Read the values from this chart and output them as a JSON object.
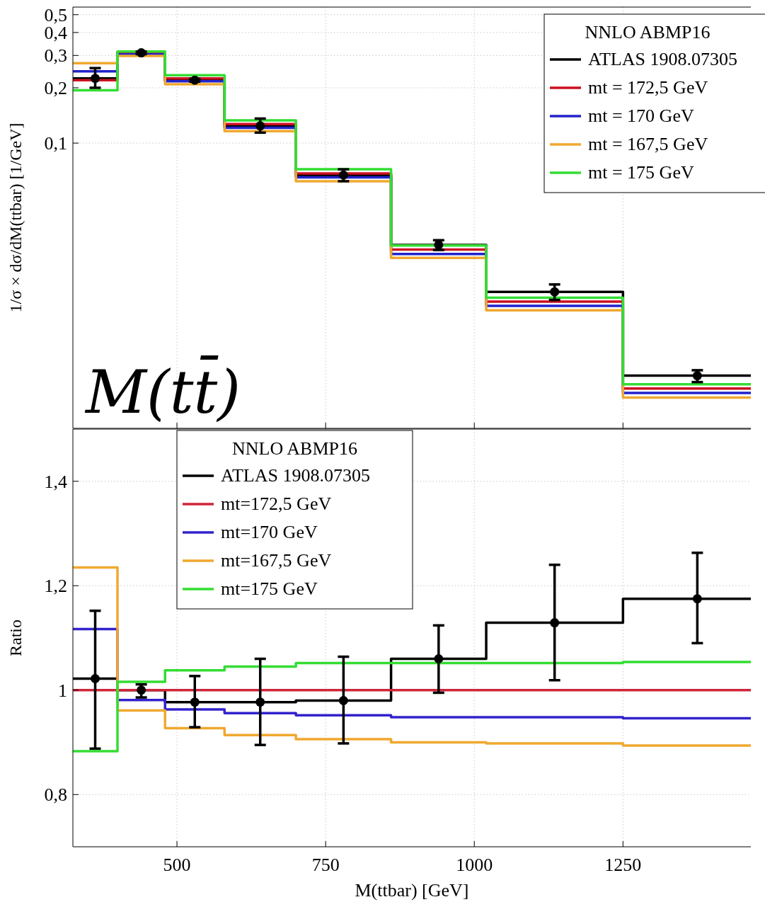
{
  "chart_data": [
    {
      "type": "step",
      "log": true,
      "ylabel": "1/σ × dσ/dM(ttbar) [1/GeV]",
      "legend_title": "NNLO ABMP16",
      "legend": "top right",
      "grid": true,
      "tick_labels": "y",
      "xlim": [
        325,
        1465
      ],
      "xticks": [
        500,
        750,
        1000,
        1250
      ],
      "ylim": [
        0.0028,
        0.55
      ],
      "yticks": [
        {
          "value": 0.1,
          "label": "0,1"
        },
        {
          "value": 0.2,
          "label": "0,2"
        },
        {
          "value": 0.3,
          "label": "0,3"
        },
        {
          "value": 0.4,
          "label": "0,4"
        },
        {
          "value": 0.5,
          "label": "0,5"
        }
      ],
      "annotations": [
        "M(tt̄)"
      ],
      "x": [
        325,
        400,
        480,
        580,
        700,
        860,
        1020,
        1250,
        1465
      ],
      "series": [
        {
          "name": "ATLAS 1908.07305",
          "color": "#000000",
          "values": [
            0.225,
            0.31,
            0.22,
            0.124,
            0.067,
            0.0279,
            0.0155,
            0.00542,
            0.00542
          ]
        },
        {
          "name": "mt = 172,5 GeV",
          "color": "#cc1122",
          "values": [
            0.22,
            0.31,
            0.225,
            0.127,
            0.0684,
            0.0263,
            0.0137,
            0.00461,
            0.00461
          ]
        },
        {
          "name": "mt = 170 GeV",
          "color": "#2222cc",
          "values": [
            0.246,
            0.304,
            0.217,
            0.121,
            0.0651,
            0.0249,
            0.013,
            0.00436,
            0.00436
          ]
        },
        {
          "name": "mt = 167,5 GeV",
          "color": "#f0a830",
          "values": [
            0.272,
            0.298,
            0.209,
            0.116,
            0.062,
            0.0237,
            0.0123,
            0.00412,
            0.00412
          ]
        },
        {
          "name": "mt = 175 GeV",
          "color": "#33dd33",
          "values": [
            0.194,
            0.315,
            0.234,
            0.133,
            0.072,
            0.0277,
            0.0144,
            0.00486,
            0.00486
          ]
        },
        {
          "type": "scatter",
          "marker": "circle",
          "color": "#000000",
          "x": [
            362.5,
            440,
            530,
            640,
            780,
            940,
            1135,
            1375
          ],
          "values": [
            0.225,
            0.31,
            0.22,
            0.124,
            0.067,
            0.0279,
            0.0155,
            0.00542
          ],
          "errors": [
            [
              0.2,
              0.256
            ],
            [
              0.305,
              0.315
            ],
            [
              0.216,
              0.224
            ],
            [
              0.114,
              0.136
            ],
            [
              0.062,
              0.072
            ],
            [
              0.0262,
              0.0296
            ],
            [
              0.014,
              0.017
            ],
            [
              0.005,
              0.0058
            ]
          ]
        }
      ]
    },
    {
      "type": "step",
      "ylabel": "Ratio",
      "xlabel": "M(ttbar) [GeV]",
      "legend_title": "NNLO ABMP16",
      "legend": "top left",
      "grid": true,
      "xlim": [
        325,
        1465
      ],
      "xticks": [
        500,
        750,
        1000,
        1250
      ],
      "ylim": [
        0.7,
        1.5
      ],
      "yticks": [
        {
          "value": 0.8,
          "label": "0,8"
        },
        1,
        {
          "value": 1.2,
          "label": "1,2"
        },
        {
          "value": 1.4,
          "label": "1,4"
        }
      ],
      "x": [
        325,
        400,
        480,
        580,
        700,
        860,
        1020,
        1250,
        1465
      ],
      "series": [
        {
          "name": "ATLAS 1908.07305",
          "color": "#000000",
          "values": [
            1.022,
            1.0,
            0.977,
            0.977,
            0.98,
            1.06,
            1.129,
            1.175,
            1.175
          ]
        },
        {
          "name": "mt=172,5 GeV",
          "color": "#d0263a",
          "values": [
            1,
            1,
            1,
            1,
            1,
            1,
            1,
            1,
            1
          ]
        },
        {
          "name": "mt=170 GeV",
          "color": "#3322cc",
          "values": [
            1.117,
            0.981,
            0.963,
            0.956,
            0.952,
            0.948,
            0.948,
            0.946,
            0.946
          ]
        },
        {
          "name": "mt=167,5 GeV",
          "color": "#f0a830",
          "values": [
            1.235,
            0.961,
            0.927,
            0.914,
            0.906,
            0.9,
            0.898,
            0.894,
            0.894
          ]
        },
        {
          "name": "mt=175 GeV",
          "color": "#33dd33",
          "values": [
            0.883,
            1.016,
            1.038,
            1.045,
            1.052,
            1.052,
            1.052,
            1.054,
            1.054
          ]
        },
        {
          "type": "scatter",
          "marker": "circle",
          "color": "#000000",
          "x": [
            362.5,
            440,
            530,
            640,
            780,
            940,
            1135,
            1375
          ],
          "values": [
            1.022,
            1.0,
            0.977,
            0.977,
            0.98,
            1.06,
            1.129,
            1.175
          ],
          "errors": [
            [
              0.888,
              1.152
            ],
            [
              0.986,
              1.011
            ],
            [
              0.929,
              1.027
            ],
            [
              0.895,
              1.06
            ],
            [
              0.898,
              1.064
            ],
            [
              0.995,
              1.124
            ],
            [
              1.019,
              1.24
            ],
            [
              1.09,
              1.263
            ]
          ]
        }
      ]
    }
  ]
}
